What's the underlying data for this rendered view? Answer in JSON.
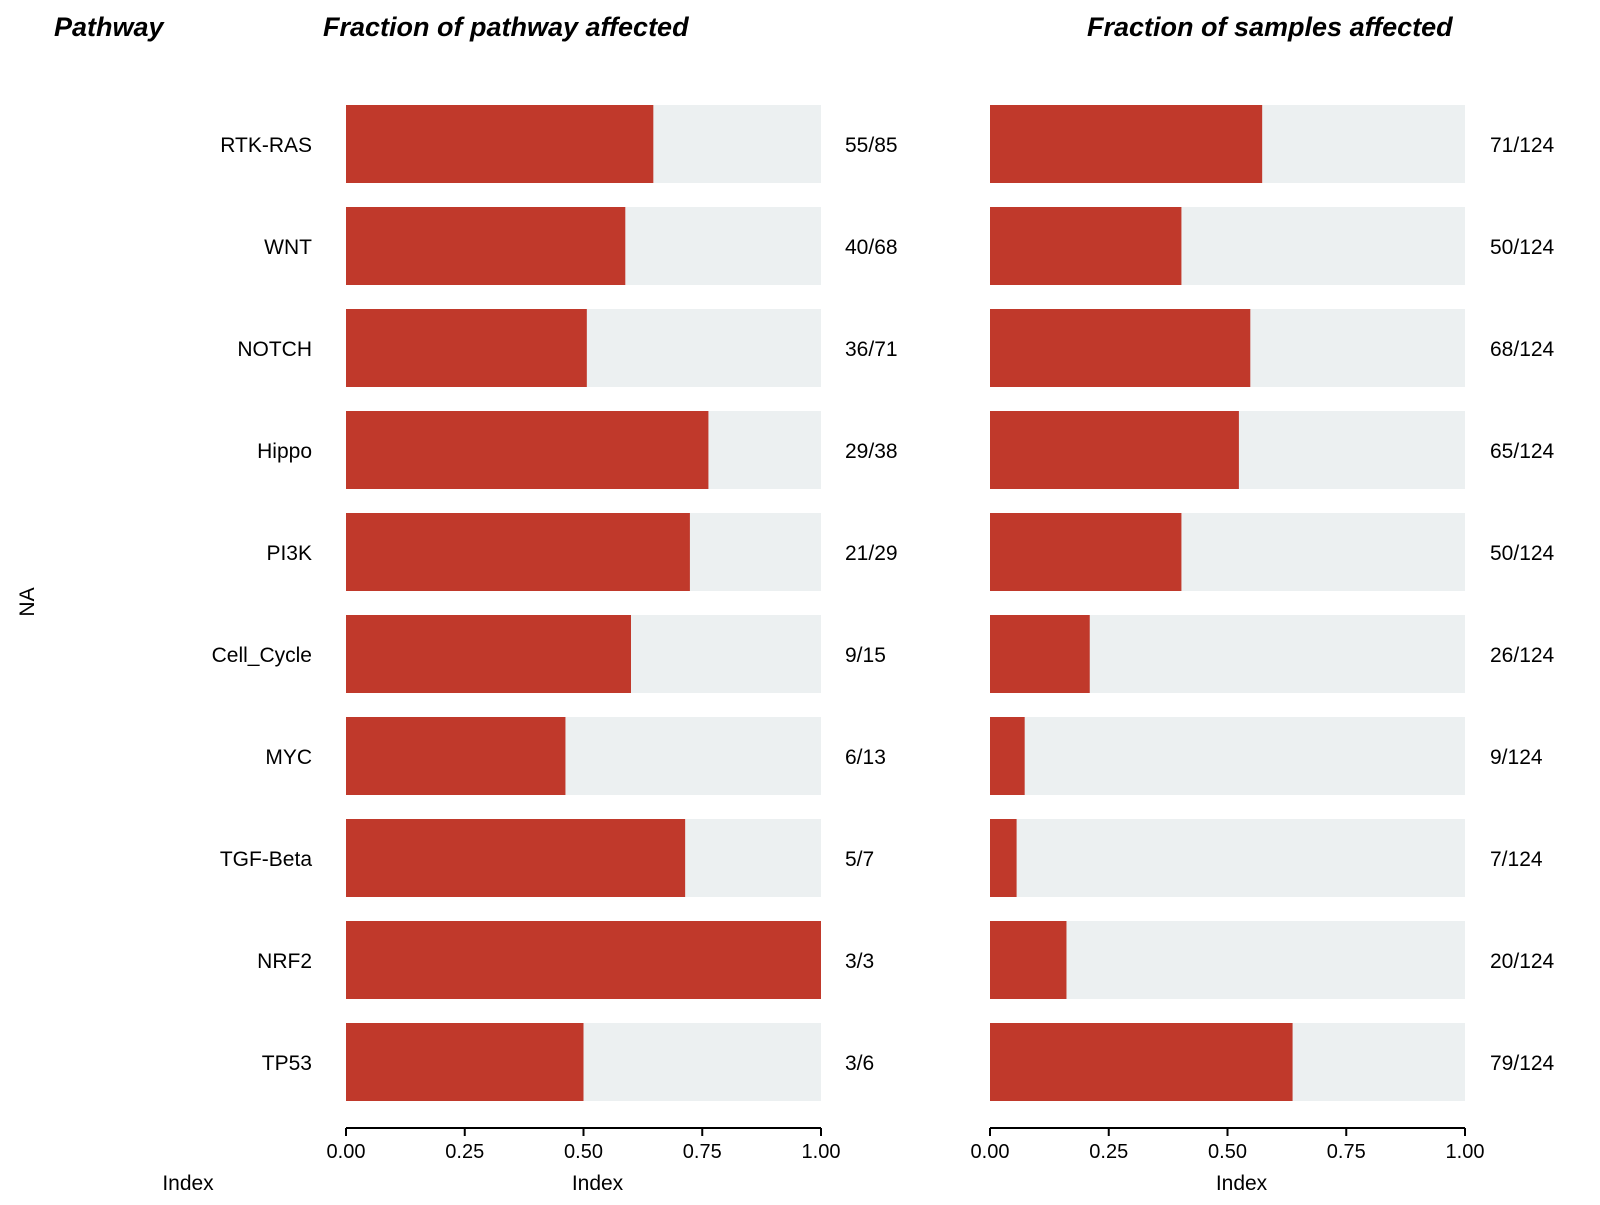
{
  "chart_data": [
    {
      "type": "bar",
      "orientation": "horizontal",
      "stacked_background": true,
      "title": "Fraction of pathway affected",
      "row_header": "Pathway",
      "ylabel": "NA",
      "xlabel": "Index",
      "xlabel_left": "Index",
      "xlim": [
        0,
        1
      ],
      "xticks": [
        "0.00",
        "0.25",
        "0.50",
        "0.75",
        "1.00"
      ],
      "categories": [
        "RTK-RAS",
        "WNT",
        "NOTCH",
        "Hippo",
        "PI3K",
        "Cell_Cycle",
        "MYC",
        "TGF-Beta",
        "NRF2",
        "TP53"
      ],
      "values": [
        0.647,
        0.588,
        0.507,
        0.763,
        0.724,
        0.6,
        0.462,
        0.714,
        1.0,
        0.5
      ],
      "data_labels": [
        "55/85",
        "40/68",
        "36/71",
        "29/38",
        "21/29",
        "9/15",
        "6/13",
        "5/7",
        "3/3",
        "3/6"
      ]
    },
    {
      "type": "bar",
      "orientation": "horizontal",
      "stacked_background": true,
      "title": "Fraction of samples affected",
      "xlabel": "Index",
      "xlim": [
        0,
        1
      ],
      "xticks": [
        "0.00",
        "0.25",
        "0.50",
        "0.75",
        "1.00"
      ],
      "categories": [
        "RTK-RAS",
        "WNT",
        "NOTCH",
        "Hippo",
        "PI3K",
        "Cell_Cycle",
        "MYC",
        "TGF-Beta",
        "NRF2",
        "TP53"
      ],
      "values": [
        0.573,
        0.403,
        0.548,
        0.524,
        0.403,
        0.21,
        0.073,
        0.056,
        0.161,
        0.637
      ],
      "data_labels": [
        "71/124",
        "50/124",
        "68/124",
        "65/124",
        "50/124",
        "26/124",
        "9/124",
        "7/124",
        "20/124",
        "79/124"
      ]
    }
  ],
  "colors": {
    "bar_fill": "#c0392b",
    "bar_background": "#ecf0f1",
    "axis": "#000000",
    "text": "#000000"
  }
}
